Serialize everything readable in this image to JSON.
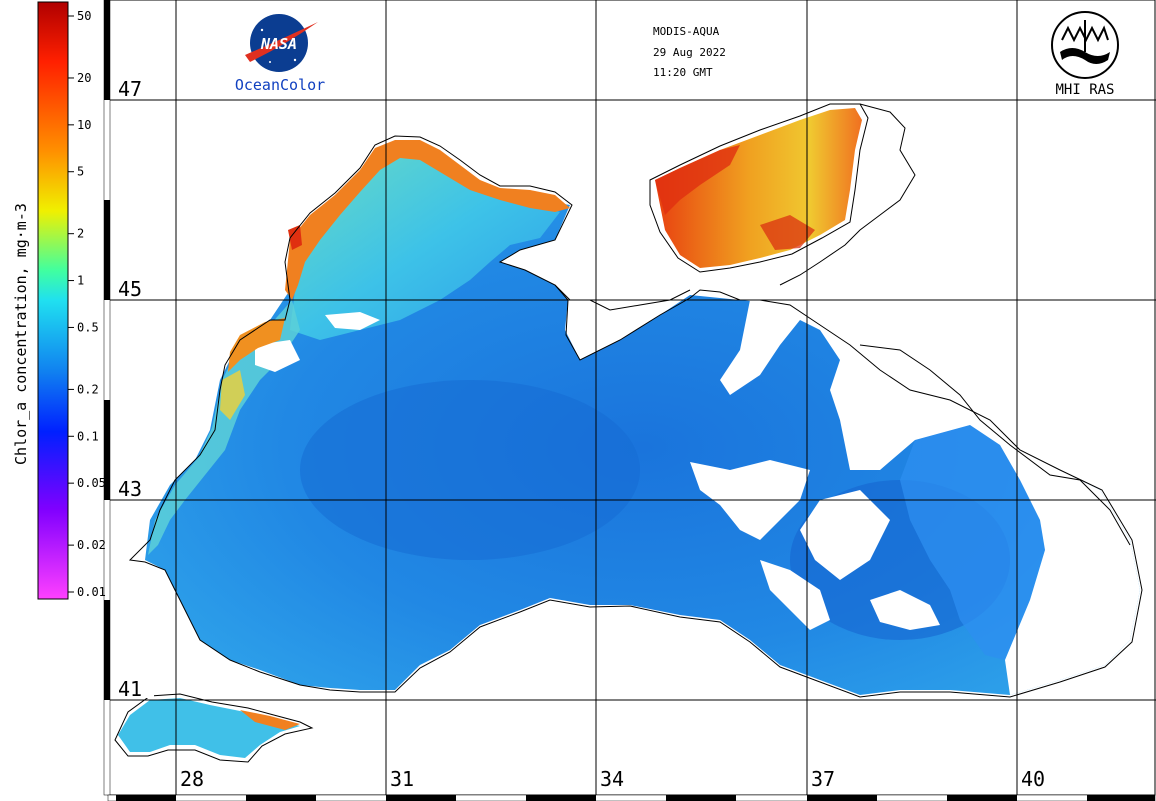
{
  "header": {
    "satellite": "MODIS-AQUA",
    "date": "29 Aug 2022",
    "time": "11:20 GMT",
    "left_logo_text": "NASA",
    "left_logo_caption": "OceanColor",
    "right_logo_caption": "MHI RAS"
  },
  "colorbar": {
    "title": "Chlor_a concentration, mg·m-3",
    "ticks": [
      "50",
      "20",
      "10",
      "5",
      "2",
      "1",
      "0.5",
      "0.2",
      "0.1",
      "0.05",
      "0.02",
      "0.01"
    ],
    "colors": [
      "#e00000",
      "#ff6000",
      "#ffd000",
      "#d0ff20",
      "#30e0e0",
      "#1090f0",
      "#0030ff",
      "#8000ff",
      "#ff40ff"
    ]
  },
  "map": {
    "latitudes": [
      "47",
      "45",
      "43",
      "41"
    ],
    "longitudes": [
      "28",
      "31",
      "34",
      "37",
      "40"
    ],
    "colors": {
      "open_sea": "#1a7ee0",
      "mid_sea": "#2c9be8",
      "shelf": "#4ec8e8",
      "coastal_green": "#7ee0b0",
      "azov_orange": "#f08020",
      "azov_yellow": "#f0c020",
      "coastal_red": "#e83010",
      "cloud_gap": "#ffffff",
      "grid": "#000000"
    }
  }
}
